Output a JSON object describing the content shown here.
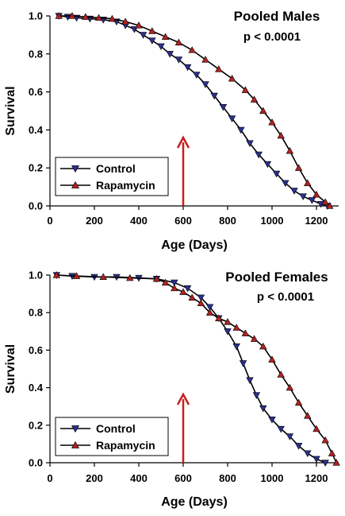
{
  "colors": {
    "control_line": "#000000",
    "control_marker": "#2b2f8f",
    "rapamycin_line": "#000000",
    "rapamycin_marker": "#b22222",
    "arrow": "#c81e1e"
  },
  "chart_data": [
    {
      "type": "line",
      "title": "Pooled Males",
      "annotation": "p < 0.0001",
      "xlabel": "Age (Days)",
      "ylabel": "Survival",
      "xlim": [
        0,
        1300
      ],
      "ylim": [
        0,
        1.0
      ],
      "xticks": [
        0,
        200,
        400,
        600,
        800,
        1000,
        1200
      ],
      "yticks": [
        0.0,
        0.2,
        0.4,
        0.6,
        0.8,
        1.0
      ],
      "xtick_labels": [
        "0",
        "200",
        "400",
        "600",
        "800",
        "1000",
        "1200"
      ],
      "ytick_labels": [
        "0.0",
        "0.2",
        "0.4",
        "0.6",
        "0.8",
        "1.0"
      ],
      "arrow_x": 600,
      "legend_position": "bottom-left",
      "grid": false,
      "series": [
        {
          "name": "Control",
          "marker": "triangle-down",
          "x": [
            40,
            80,
            120,
            180,
            240,
            300,
            340,
            380,
            420,
            460,
            500,
            540,
            580,
            620,
            660,
            700,
            740,
            780,
            820,
            860,
            900,
            940,
            980,
            1020,
            1060,
            1100,
            1140,
            1180,
            1220,
            1250
          ],
          "y": [
            1.0,
            0.995,
            0.99,
            0.985,
            0.98,
            0.97,
            0.95,
            0.93,
            0.9,
            0.87,
            0.84,
            0.8,
            0.77,
            0.73,
            0.69,
            0.64,
            0.58,
            0.52,
            0.46,
            0.4,
            0.33,
            0.27,
            0.22,
            0.17,
            0.12,
            0.08,
            0.05,
            0.03,
            0.01,
            0.0
          ]
        },
        {
          "name": "Rapamycin",
          "marker": "triangle-up",
          "x": [
            40,
            100,
            160,
            220,
            280,
            340,
            400,
            460,
            520,
            580,
            640,
            700,
            760,
            820,
            880,
            920,
            960,
            1000,
            1040,
            1080,
            1120,
            1160,
            1200,
            1240,
            1260
          ],
          "y": [
            1.0,
            1.0,
            0.995,
            0.99,
            0.985,
            0.97,
            0.95,
            0.92,
            0.89,
            0.86,
            0.82,
            0.77,
            0.72,
            0.67,
            0.61,
            0.56,
            0.5,
            0.44,
            0.37,
            0.29,
            0.2,
            0.12,
            0.06,
            0.02,
            0.0
          ]
        }
      ]
    },
    {
      "type": "line",
      "title": "Pooled Females",
      "annotation": "p < 0.0001",
      "xlabel": "Age (Days)",
      "ylabel": "Survival",
      "xlim": [
        0,
        1300
      ],
      "ylim": [
        0,
        1.0
      ],
      "xticks": [
        0,
        200,
        400,
        600,
        800,
        1000,
        1200
      ],
      "yticks": [
        0.0,
        0.2,
        0.4,
        0.6,
        0.8,
        1.0
      ],
      "xtick_labels": [
        "0",
        "200",
        "400",
        "600",
        "800",
        "1000",
        "1200"
      ],
      "ytick_labels": [
        "0.0",
        "0.2",
        "0.4",
        "0.6",
        "0.8",
        "1.0"
      ],
      "arrow_x": 600,
      "legend_position": "bottom-left",
      "grid": false,
      "series": [
        {
          "name": "Control",
          "marker": "triangle-down",
          "x": [
            30,
            100,
            200,
            300,
            400,
            480,
            560,
            620,
            680,
            720,
            760,
            800,
            840,
            870,
            900,
            930,
            960,
            1000,
            1040,
            1080,
            1120,
            1160,
            1200,
            1240
          ],
          "y": [
            1.0,
            0.995,
            0.99,
            0.99,
            0.985,
            0.98,
            0.96,
            0.93,
            0.88,
            0.83,
            0.77,
            0.7,
            0.62,
            0.53,
            0.44,
            0.36,
            0.29,
            0.23,
            0.18,
            0.14,
            0.09,
            0.05,
            0.02,
            0.0
          ]
        },
        {
          "name": "Rapamycin",
          "marker": "triangle-up",
          "x": [
            30,
            120,
            240,
            360,
            480,
            520,
            560,
            600,
            640,
            680,
            720,
            760,
            800,
            840,
            880,
            920,
            960,
            1000,
            1040,
            1080,
            1120,
            1160,
            1200,
            1240,
            1270,
            1290
          ],
          "y": [
            1.0,
            0.995,
            0.99,
            0.985,
            0.98,
            0.96,
            0.93,
            0.91,
            0.88,
            0.85,
            0.8,
            0.77,
            0.75,
            0.72,
            0.69,
            0.66,
            0.62,
            0.55,
            0.47,
            0.4,
            0.32,
            0.25,
            0.18,
            0.12,
            0.05,
            0.0
          ]
        }
      ]
    }
  ]
}
